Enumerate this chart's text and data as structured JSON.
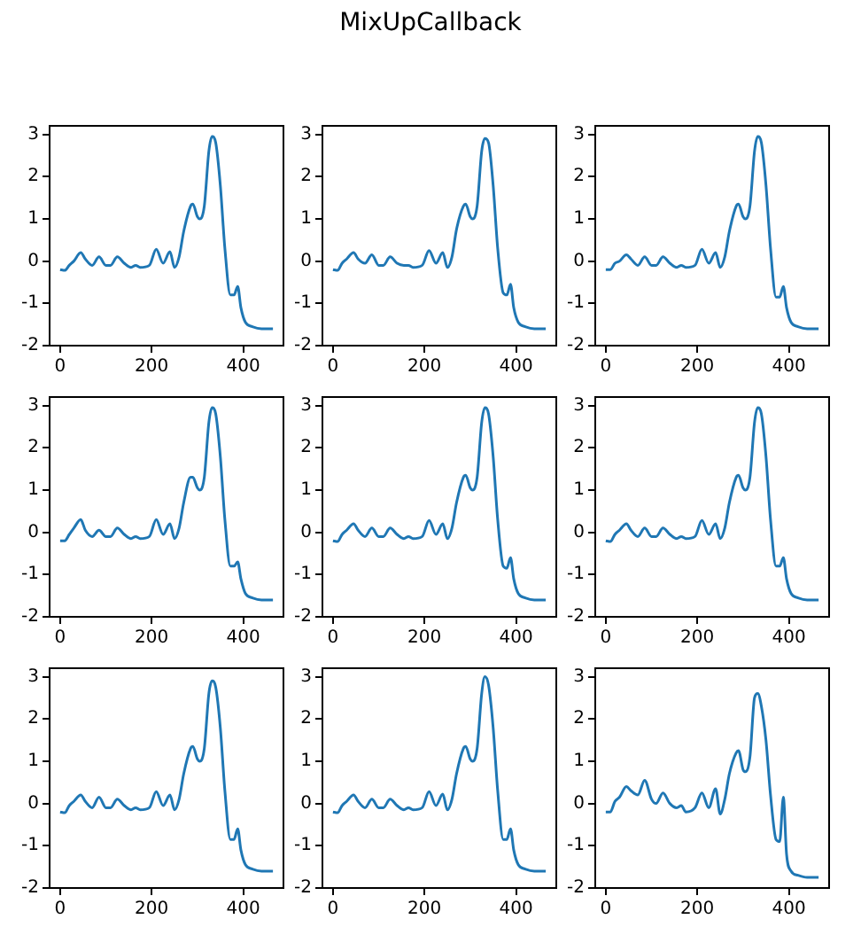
{
  "chart_data": [
    {
      "type": "line",
      "x": [
        0,
        10,
        20,
        30,
        45,
        55,
        70,
        85,
        100,
        110,
        125,
        140,
        155,
        165,
        175,
        195,
        210,
        225,
        240,
        250,
        260,
        270,
        285,
        290,
        300,
        305,
        315,
        325,
        332,
        340,
        350,
        360,
        372,
        380,
        388,
        395,
        405,
        420,
        440,
        465
      ],
      "values": [
        -0.2,
        -0.22,
        -0.1,
        0.0,
        0.2,
        0.05,
        -0.1,
        0.1,
        -0.1,
        -0.1,
        0.1,
        -0.05,
        -0.15,
        -0.1,
        -0.15,
        -0.1,
        0.28,
        -0.05,
        0.22,
        -0.15,
        0.1,
        0.7,
        1.3,
        1.35,
        1.05,
        1.0,
        1.3,
        2.6,
        2.95,
        2.8,
        1.8,
        0.3,
        -0.8,
        -0.8,
        -0.6,
        -1.1,
        -1.45,
        -1.55,
        -1.6,
        -1.6
      ],
      "color": "#1f77b4",
      "xlim": [
        -23,
        488
      ],
      "xticks": [
        0,
        200,
        400
      ],
      "ylim": [
        -2,
        3.2
      ],
      "yticks": [
        -2,
        -1,
        0,
        1,
        2,
        3
      ],
      "grid": false,
      "legend": false
    },
    {
      "type": "line",
      "title": "MixUpCallback",
      "x": [
        0,
        10,
        20,
        30,
        45,
        55,
        70,
        85,
        100,
        110,
        125,
        140,
        155,
        165,
        175,
        195,
        210,
        225,
        240,
        250,
        260,
        270,
        285,
        290,
        300,
        305,
        315,
        325,
        332,
        340,
        350,
        360,
        372,
        380,
        388,
        395,
        405,
        420,
        440,
        465
      ],
      "values": [
        -0.2,
        -0.22,
        -0.05,
        0.05,
        0.2,
        0.05,
        -0.05,
        0.15,
        -0.1,
        -0.1,
        0.1,
        -0.05,
        -0.1,
        -0.1,
        -0.15,
        -0.1,
        0.25,
        -0.05,
        0.2,
        -0.15,
        0.1,
        0.75,
        1.3,
        1.35,
        1.05,
        1.0,
        1.3,
        2.6,
        2.9,
        2.8,
        1.8,
        0.3,
        -0.75,
        -0.8,
        -0.55,
        -1.1,
        -1.45,
        -1.55,
        -1.6,
        -1.6
      ],
      "color": "#1f77b4",
      "xlim": [
        -23,
        488
      ],
      "xticks": [
        0,
        200,
        400
      ],
      "ylim": [
        -2,
        3.2
      ],
      "yticks": [
        -2,
        -1,
        0,
        1,
        2,
        3
      ],
      "grid": false,
      "legend": false
    },
    {
      "type": "line",
      "x": [
        0,
        10,
        20,
        30,
        45,
        55,
        70,
        85,
        100,
        110,
        125,
        140,
        155,
        165,
        175,
        195,
        210,
        225,
        240,
        250,
        260,
        270,
        285,
        290,
        300,
        305,
        315,
        325,
        332,
        340,
        350,
        360,
        372,
        380,
        388,
        395,
        405,
        420,
        440,
        465
      ],
      "values": [
        -0.2,
        -0.2,
        -0.05,
        0.0,
        0.15,
        0.05,
        -0.1,
        0.1,
        -0.1,
        -0.1,
        0.1,
        -0.05,
        -0.15,
        -0.1,
        -0.15,
        -0.1,
        0.28,
        -0.05,
        0.2,
        -0.15,
        0.1,
        0.7,
        1.3,
        1.35,
        1.05,
        1.0,
        1.3,
        2.6,
        2.95,
        2.8,
        1.8,
        0.3,
        -0.85,
        -0.85,
        -0.6,
        -1.1,
        -1.45,
        -1.55,
        -1.6,
        -1.6
      ],
      "color": "#1f77b4",
      "xlim": [
        -23,
        488
      ],
      "xticks": [
        0,
        200,
        400
      ],
      "ylim": [
        -2,
        3.2
      ],
      "yticks": [
        -2,
        -1,
        0,
        1,
        2,
        3
      ],
      "grid": false,
      "legend": false
    },
    {
      "type": "line",
      "x": [
        0,
        10,
        20,
        30,
        45,
        55,
        70,
        85,
        100,
        110,
        125,
        140,
        155,
        165,
        175,
        195,
        210,
        225,
        240,
        250,
        260,
        270,
        285,
        290,
        300,
        305,
        315,
        325,
        332,
        340,
        350,
        360,
        372,
        380,
        388,
        395,
        405,
        420,
        440,
        465
      ],
      "values": [
        -0.2,
        -0.2,
        -0.05,
        0.1,
        0.3,
        0.05,
        -0.1,
        0.05,
        -0.1,
        -0.1,
        0.1,
        -0.05,
        -0.15,
        -0.1,
        -0.15,
        -0.1,
        0.3,
        -0.05,
        0.2,
        -0.15,
        0.1,
        0.7,
        1.3,
        1.3,
        1.05,
        1.0,
        1.3,
        2.6,
        2.95,
        2.8,
        1.8,
        0.3,
        -0.8,
        -0.8,
        -0.7,
        -1.1,
        -1.45,
        -1.55,
        -1.6,
        -1.6
      ],
      "color": "#1f77b4",
      "xlim": [
        -23,
        488
      ],
      "xticks": [
        0,
        200,
        400
      ],
      "ylim": [
        -2,
        3.2
      ],
      "yticks": [
        -2,
        -1,
        0,
        1,
        2,
        3
      ],
      "grid": false,
      "legend": false
    },
    {
      "type": "line",
      "x": [
        0,
        10,
        20,
        30,
        45,
        55,
        70,
        85,
        100,
        110,
        125,
        140,
        155,
        165,
        175,
        195,
        210,
        225,
        240,
        250,
        260,
        270,
        285,
        290,
        300,
        305,
        315,
        325,
        332,
        340,
        350,
        360,
        372,
        380,
        388,
        395,
        405,
        420,
        440,
        465
      ],
      "values": [
        -0.2,
        -0.22,
        -0.05,
        0.05,
        0.2,
        0.05,
        -0.1,
        0.1,
        -0.1,
        -0.1,
        0.1,
        -0.05,
        -0.15,
        -0.1,
        -0.15,
        -0.1,
        0.28,
        -0.05,
        0.2,
        -0.15,
        0.1,
        0.7,
        1.3,
        1.35,
        1.05,
        1.0,
        1.3,
        2.6,
        2.95,
        2.8,
        1.8,
        0.3,
        -0.8,
        -0.85,
        -0.6,
        -1.1,
        -1.45,
        -1.55,
        -1.6,
        -1.6
      ],
      "color": "#1f77b4",
      "xlim": [
        -23,
        488
      ],
      "xticks": [
        0,
        200,
        400
      ],
      "ylim": [
        -2,
        3.2
      ],
      "yticks": [
        -2,
        -1,
        0,
        1,
        2,
        3
      ],
      "grid": false,
      "legend": false
    },
    {
      "type": "line",
      "x": [
        0,
        10,
        20,
        30,
        45,
        55,
        70,
        85,
        100,
        110,
        125,
        140,
        155,
        165,
        175,
        195,
        210,
        225,
        240,
        250,
        260,
        270,
        285,
        290,
        300,
        305,
        315,
        325,
        332,
        340,
        350,
        360,
        372,
        380,
        388,
        395,
        405,
        420,
        440,
        465
      ],
      "values": [
        -0.2,
        -0.22,
        -0.05,
        0.05,
        0.2,
        0.05,
        -0.1,
        0.1,
        -0.1,
        -0.1,
        0.1,
        -0.05,
        -0.15,
        -0.1,
        -0.15,
        -0.1,
        0.28,
        -0.05,
        0.2,
        -0.15,
        0.1,
        0.7,
        1.3,
        1.35,
        1.05,
        1.0,
        1.3,
        2.6,
        2.95,
        2.8,
        1.8,
        0.3,
        -0.8,
        -0.8,
        -0.6,
        -1.1,
        -1.45,
        -1.55,
        -1.6,
        -1.6
      ],
      "color": "#1f77b4",
      "xlim": [
        -23,
        488
      ],
      "xticks": [
        0,
        200,
        400
      ],
      "ylim": [
        -2,
        3.2
      ],
      "yticks": [
        -2,
        -1,
        0,
        1,
        2,
        3
      ],
      "grid": false,
      "legend": false
    },
    {
      "type": "line",
      "x": [
        0,
        10,
        20,
        30,
        45,
        55,
        70,
        85,
        100,
        110,
        125,
        140,
        155,
        165,
        175,
        195,
        210,
        225,
        240,
        250,
        260,
        270,
        285,
        290,
        300,
        305,
        315,
        325,
        332,
        340,
        350,
        360,
        372,
        380,
        388,
        395,
        405,
        420,
        440,
        465
      ],
      "values": [
        -0.2,
        -0.22,
        -0.05,
        0.05,
        0.2,
        0.05,
        -0.1,
        0.15,
        -0.1,
        -0.1,
        0.1,
        -0.05,
        -0.15,
        -0.1,
        -0.15,
        -0.1,
        0.28,
        -0.05,
        0.2,
        -0.15,
        0.1,
        0.7,
        1.3,
        1.35,
        1.05,
        1.0,
        1.3,
        2.6,
        2.9,
        2.75,
        1.8,
        0.3,
        -0.85,
        -0.85,
        -0.6,
        -1.1,
        -1.45,
        -1.55,
        -1.6,
        -1.6
      ],
      "color": "#1f77b4",
      "xlim": [
        -23,
        488
      ],
      "xticks": [
        0,
        200,
        400
      ],
      "ylim": [
        -2,
        3.2
      ],
      "yticks": [
        -2,
        -1,
        0,
        1,
        2,
        3
      ],
      "grid": false,
      "legend": false
    },
    {
      "type": "line",
      "x": [
        0,
        10,
        20,
        30,
        45,
        55,
        70,
        85,
        100,
        110,
        125,
        140,
        155,
        165,
        175,
        195,
        210,
        225,
        240,
        250,
        260,
        270,
        285,
        290,
        300,
        305,
        315,
        325,
        332,
        340,
        350,
        360,
        372,
        380,
        388,
        395,
        405,
        420,
        440,
        465
      ],
      "values": [
        -0.2,
        -0.22,
        -0.05,
        0.05,
        0.2,
        0.05,
        -0.1,
        0.1,
        -0.1,
        -0.1,
        0.1,
        -0.05,
        -0.15,
        -0.1,
        -0.15,
        -0.1,
        0.28,
        -0.05,
        0.22,
        -0.15,
        0.1,
        0.7,
        1.3,
        1.35,
        1.05,
        1.0,
        1.3,
        2.6,
        3.0,
        2.8,
        1.8,
        0.3,
        -0.85,
        -0.85,
        -0.6,
        -1.1,
        -1.45,
        -1.55,
        -1.6,
        -1.6
      ],
      "color": "#1f77b4",
      "xlim": [
        -23,
        488
      ],
      "xticks": [
        0,
        200,
        400
      ],
      "ylim": [
        -2,
        3.2
      ],
      "yticks": [
        -2,
        -1,
        0,
        1,
        2,
        3
      ],
      "grid": false,
      "legend": false
    },
    {
      "type": "line",
      "x": [
        0,
        10,
        20,
        30,
        45,
        55,
        70,
        85,
        100,
        110,
        125,
        140,
        155,
        165,
        175,
        195,
        210,
        225,
        240,
        250,
        260,
        270,
        285,
        290,
        300,
        305,
        315,
        325,
        332,
        340,
        350,
        360,
        372,
        380,
        388,
        395,
        405,
        420,
        440,
        465
      ],
      "values": [
        -0.2,
        -0.2,
        0.05,
        0.15,
        0.4,
        0.3,
        0.2,
        0.55,
        0.1,
        0.0,
        0.25,
        0.0,
        -0.1,
        -0.05,
        -0.2,
        -0.1,
        0.25,
        -0.1,
        0.35,
        -0.25,
        0.1,
        0.7,
        1.2,
        1.25,
        0.8,
        0.75,
        1.1,
        2.5,
        2.6,
        2.3,
        1.5,
        0.2,
        -0.85,
        -0.9,
        0.15,
        -1.2,
        -1.6,
        -1.7,
        -1.75,
        -1.75
      ],
      "color": "#1f77b4",
      "xlim": [
        -23,
        488
      ],
      "xticks": [
        0,
        200,
        400
      ],
      "ylim": [
        -2,
        3.2
      ],
      "yticks": [
        -2,
        -1,
        0,
        1,
        2,
        3
      ],
      "grid": false,
      "legend": false
    }
  ]
}
